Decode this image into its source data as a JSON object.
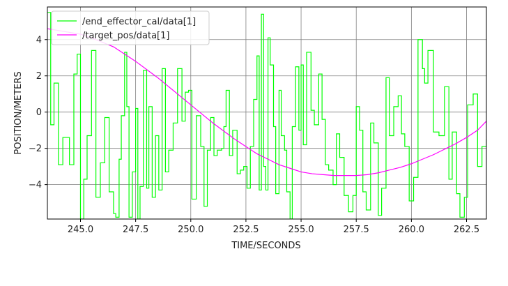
{
  "chart_data": {
    "type": "line",
    "title": "",
    "xlabel": "TIME/SECONDS",
    "ylabel": "POSITION/METERS",
    "xlim": [
      243.5,
      263.4
    ],
    "ylim": [
      -5.9,
      5.8
    ],
    "grid": true,
    "legend_position": "top-left",
    "xticks": [
      245.0,
      247.5,
      250.0,
      252.5,
      255.0,
      257.5,
      260.0,
      262.5
    ],
    "xtick_labels": [
      "245.0",
      "247.5",
      "250.0",
      "252.5",
      "255.0",
      "257.5",
      "260.0",
      "262.5"
    ],
    "yticks": [
      -4,
      -2,
      0,
      2,
      4
    ],
    "ytick_labels": [
      "−4",
      "−2",
      "0",
      "2",
      "4"
    ],
    "series": [
      {
        "name": "/end_effector_cal/data[1]",
        "color": "#00ff00",
        "step": true,
        "x": [
          243.5,
          243.65,
          243.8,
          244.0,
          244.2,
          244.5,
          244.7,
          244.85,
          245.0,
          245.15,
          245.3,
          245.5,
          245.7,
          245.9,
          246.1,
          246.3,
          246.5,
          246.6,
          246.75,
          246.85,
          247.0,
          247.1,
          247.2,
          247.35,
          247.5,
          247.6,
          247.7,
          247.85,
          248.0,
          248.1,
          248.25,
          248.4,
          248.55,
          248.7,
          248.85,
          249.0,
          249.2,
          249.4,
          249.6,
          249.75,
          249.9,
          250.05,
          250.25,
          250.45,
          250.6,
          250.75,
          250.9,
          251.05,
          251.2,
          251.4,
          251.5,
          251.6,
          251.75,
          251.9,
          252.1,
          252.25,
          252.4,
          252.55,
          252.7,
          252.85,
          253.0,
          253.1,
          253.2,
          253.3,
          253.4,
          253.5,
          253.6,
          253.75,
          253.85,
          254.0,
          254.1,
          254.25,
          254.35,
          254.5,
          254.6,
          254.75,
          254.9,
          255.0,
          255.1,
          255.25,
          255.45,
          255.6,
          255.8,
          255.95,
          256.1,
          256.25,
          256.45,
          256.6,
          256.75,
          256.95,
          257.15,
          257.35,
          257.5,
          257.65,
          257.8,
          257.95,
          258.15,
          258.3,
          258.5,
          258.65,
          258.85,
          259.0,
          259.2,
          259.4,
          259.55,
          259.7,
          259.9,
          260.1,
          260.3,
          260.5,
          260.6,
          260.75,
          261.0,
          261.25,
          261.5,
          261.7,
          261.85,
          262.05,
          262.2,
          262.4,
          262.55,
          262.8,
          263.0,
          263.2,
          263.4
        ],
        "y": [
          5.5,
          -0.7,
          1.6,
          -2.9,
          -1.4,
          -2.9,
          2.1,
          3.2,
          -5.9,
          -3.7,
          -1.3,
          3.4,
          -4.7,
          -2.8,
          -0.3,
          -4.4,
          -5.6,
          -5.8,
          -2.6,
          -0.2,
          3.3,
          0.3,
          -5.8,
          -3.3,
          0.2,
          -5.9,
          -4.1,
          2.3,
          -4.2,
          0.3,
          -4.7,
          -1.3,
          -4.3,
          2.4,
          -3.3,
          -2.1,
          -0.6,
          2.4,
          -0.5,
          1.1,
          1.2,
          -4.8,
          -0.2,
          -1.9,
          -5.2,
          -2.1,
          -0.3,
          -2.4,
          -2.1,
          -2.0,
          -0.8,
          1.2,
          -2.4,
          -1.0,
          -3.4,
          -3.2,
          -3.0,
          -4.2,
          -1.9,
          0.7,
          3.1,
          -4.3,
          5.4,
          -3.0,
          -4.3,
          4.1,
          2.6,
          -0.8,
          -4.5,
          1.2,
          -1.3,
          -2.1,
          -4.4,
          -5.9,
          -0.8,
          2.5,
          -1.0,
          2.6,
          -1.8,
          3.3,
          0.1,
          -0.7,
          2.1,
          -0.4,
          -2.9,
          -3.2,
          -4.0,
          -1.2,
          -2.5,
          -4.6,
          -5.5,
          -4.6,
          0.3,
          -1.0,
          -4.4,
          -5.4,
          -0.6,
          -1.7,
          -5.7,
          -4.2,
          1.9,
          -1.3,
          0.3,
          0.9,
          -1.2,
          -1.9,
          -4.9,
          -3.6,
          4.0,
          2.4,
          1.6,
          3.4,
          -1.1,
          -1.3,
          1.4,
          -3.7,
          -1.1,
          -4.5,
          -5.8,
          -4.7,
          0.4,
          1.0,
          -3.0,
          -1.9,
          -1.5
        ],
        "note_y_unit": "meters"
      },
      {
        "name": "/target_pos/data[1]",
        "color": "#ff00ff",
        "step": false,
        "x": [
          243.5,
          244.0,
          244.5,
          245.0,
          245.5,
          246.0,
          246.5,
          247.0,
          247.5,
          248.0,
          248.5,
          249.0,
          249.5,
          250.0,
          250.5,
          251.0,
          251.5,
          252.0,
          252.5,
          253.0,
          253.5,
          254.0,
          254.5,
          255.0,
          255.5,
          256.0,
          256.5,
          257.0,
          257.5,
          258.0,
          258.5,
          259.0,
          259.5,
          260.0,
          260.5,
          261.0,
          261.5,
          262.0,
          262.5,
          263.0,
          263.4
        ],
        "y": [
          4.6,
          4.5,
          4.4,
          4.3,
          4.1,
          3.85,
          3.6,
          3.2,
          2.8,
          2.35,
          1.9,
          1.4,
          0.9,
          0.4,
          -0.1,
          -0.6,
          -1.05,
          -1.5,
          -1.9,
          -2.3,
          -2.6,
          -2.9,
          -3.1,
          -3.3,
          -3.4,
          -3.45,
          -3.5,
          -3.5,
          -3.5,
          -3.45,
          -3.35,
          -3.2,
          -3.05,
          -2.85,
          -2.6,
          -2.35,
          -2.05,
          -1.75,
          -1.4,
          -1.0,
          -0.5
        ]
      }
    ]
  }
}
